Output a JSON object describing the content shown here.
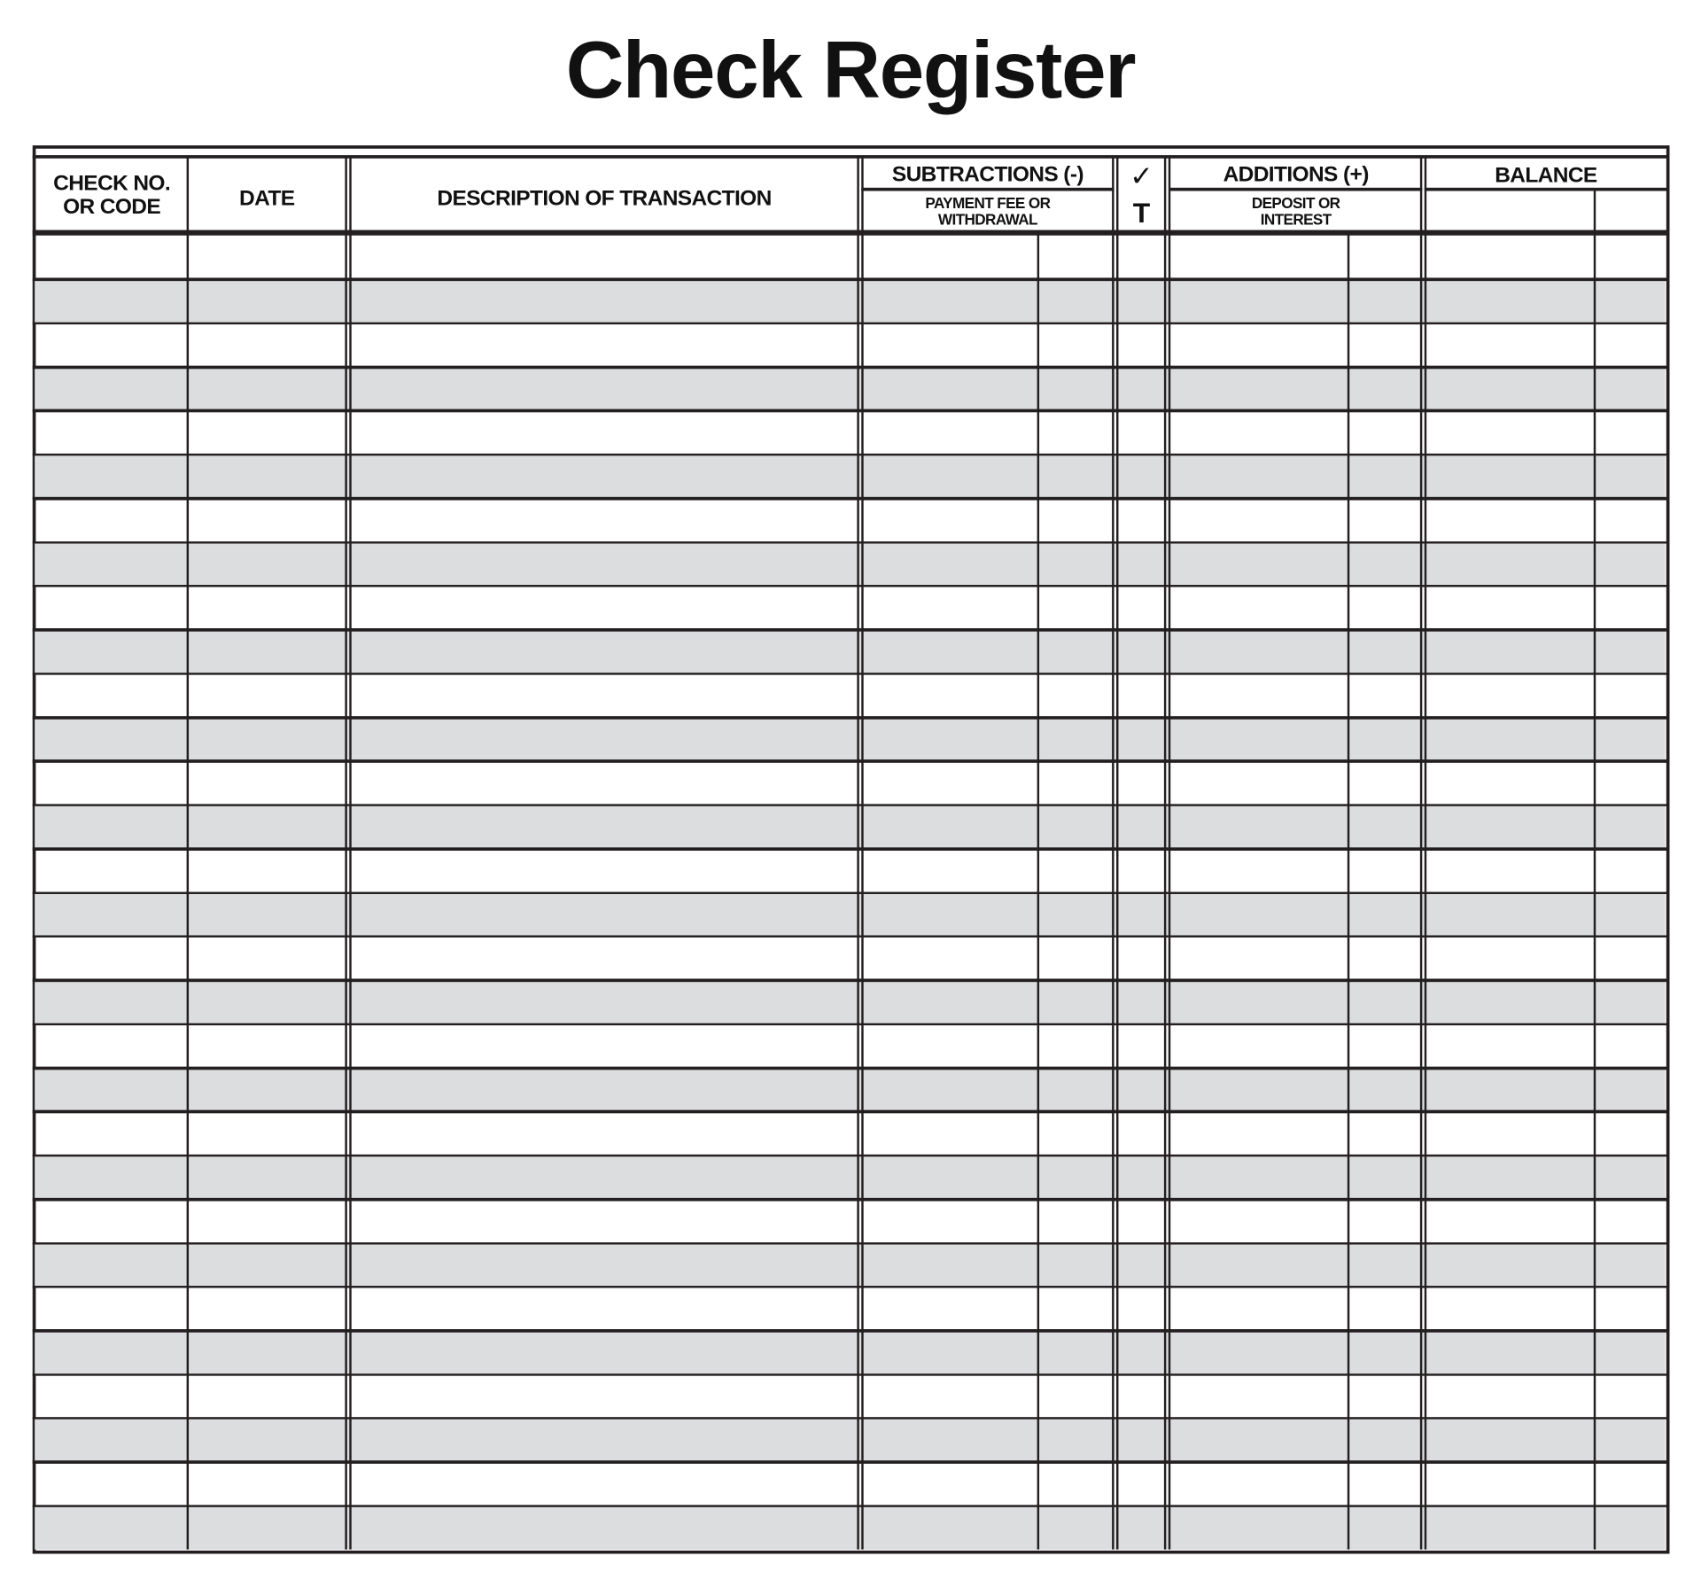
{
  "title": "Check Register",
  "headers": {
    "check_no": "CHECK NO.\nOR CODE",
    "date": "DATE",
    "description": "DESCRIPTION OF TRANSACTION",
    "subtractions": "SUBTRACTIONS (-)",
    "subtractions_sub": "PAYMENT FEE OR\nWITHDRAWAL",
    "check_mark": "✓",
    "tax_mark": "T",
    "additions": "ADDITIONS (+)",
    "additions_sub": "DEPOSIT OR\nINTEREST",
    "balance": "BALANCE"
  },
  "colors": {
    "line": "#231f20",
    "stripe": "#dcdddf"
  }
}
